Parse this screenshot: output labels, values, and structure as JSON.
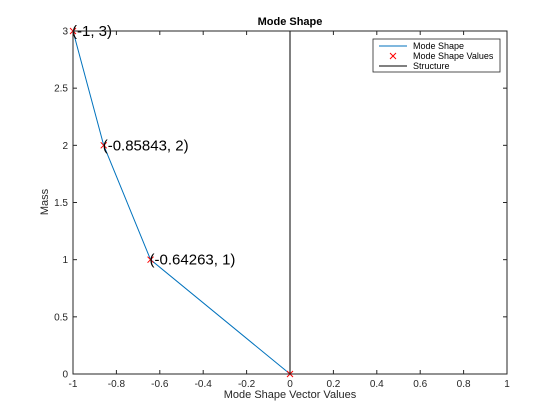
{
  "chart_data": {
    "type": "line",
    "title": "Mode Shape",
    "xlabel": "Mode Shape Vector Values",
    "ylabel": "Mass",
    "xlim": [
      -1,
      1
    ],
    "ylim": [
      0,
      3
    ],
    "xticks": [
      -1,
      -0.8,
      -0.6,
      -0.4,
      -0.2,
      0,
      0.2,
      0.4,
      0.6,
      0.8,
      1
    ],
    "xtick_labels": [
      "-1",
      "-0.8",
      "-0.6",
      "-0.4",
      "-0.2",
      "0",
      "0.2",
      "0.4",
      "0.6",
      "0.8",
      "1"
    ],
    "yticks": [
      0,
      0.5,
      1,
      1.5,
      2,
      2.5,
      3
    ],
    "ytick_labels": [
      "0",
      "0.5",
      "1",
      "1.5",
      "2",
      "2.5",
      "3"
    ],
    "grid": false,
    "legend_position": "top-right",
    "series": [
      {
        "name": "Mode Shape",
        "kind": "line",
        "color": "#0072bd",
        "x": [
          0,
          -0.64263,
          -0.85843,
          -1
        ],
        "y": [
          0,
          1,
          2,
          3
        ]
      },
      {
        "name": "Mode Shape Values",
        "kind": "marker-x",
        "color": "#ff0000",
        "x": [
          0,
          -0.64263,
          -0.85843,
          -1
        ],
        "y": [
          0,
          1,
          2,
          3
        ]
      },
      {
        "name": "Structure",
        "kind": "line",
        "color": "#000000",
        "x": [
          0,
          0
        ],
        "y": [
          0,
          3
        ]
      }
    ],
    "annotations": [
      {
        "text": "(-1, 3)",
        "x": -1,
        "y": 3
      },
      {
        "text": "(-0.85843, 2)",
        "x": -0.85843,
        "y": 2
      },
      {
        "text": "(-0.64263, 1)",
        "x": -0.64263,
        "y": 1
      }
    ]
  }
}
